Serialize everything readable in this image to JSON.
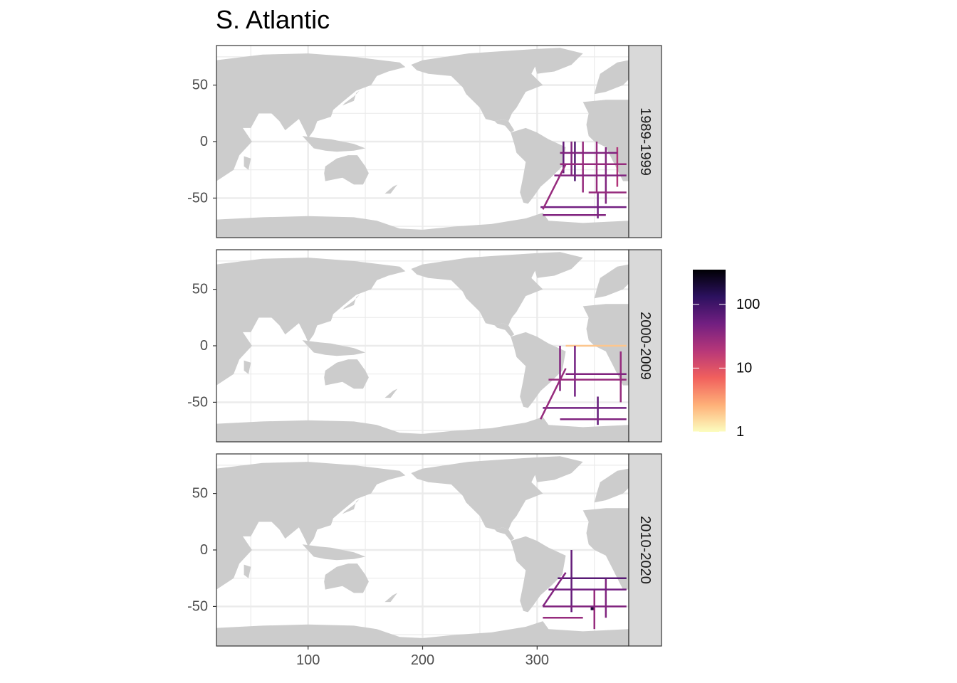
{
  "chart_data": {
    "type": "heatmap",
    "title": "S. Atlantic",
    "xlabel": "",
    "ylabel": "",
    "xlim": [
      20,
      380
    ],
    "ylim": [
      -85,
      85
    ],
    "x_ticks": [
      100,
      200,
      300
    ],
    "y_ticks": [
      -50,
      0,
      50
    ],
    "grid": true,
    "land_color": "#cccccc",
    "panel_background": "#ffffff",
    "region": {
      "lon": [
        300,
        380
      ],
      "lat": [
        -78,
        0
      ]
    },
    "facets": [
      {
        "label": "1989-1999",
        "tracks": [
          {
            "type": "meridional",
            "lon": 323,
            "lat": [
              -28,
              0
            ],
            "value": 60
          },
          {
            "type": "meridional",
            "lon": 330,
            "lat": [
              -30,
              0
            ],
            "value": 40
          },
          {
            "type": "meridional",
            "lon": 333,
            "lat": [
              -35,
              0
            ],
            "value": 80
          },
          {
            "type": "meridional",
            "lon": 340,
            "lat": [
              -45,
              0
            ],
            "value": 30
          },
          {
            "type": "meridional",
            "lon": 352,
            "lat": [
              -45,
              0
            ],
            "value": 30
          },
          {
            "type": "meridional",
            "lon": 360,
            "lat": [
              -55,
              -5
            ],
            "value": 40
          },
          {
            "type": "meridional",
            "lon": 370,
            "lat": [
              -40,
              -5
            ],
            "value": 20
          },
          {
            "type": "meridional",
            "lon": 353,
            "lat": [
              -68,
              -45
            ],
            "value": 50
          },
          {
            "type": "zonal",
            "lat": -10,
            "lon": [
              320,
              370
            ],
            "value": 40
          },
          {
            "type": "zonal",
            "lat": -20,
            "lon": [
              320,
              378
            ],
            "value": 30
          },
          {
            "type": "zonal",
            "lat": -30,
            "lon": [
              315,
              378
            ],
            "value": 40
          },
          {
            "type": "zonal",
            "lat": -45,
            "lon": [
              345,
              378
            ],
            "value": 30
          },
          {
            "type": "zonal",
            "lat": -58,
            "lon": [
              303,
              378
            ],
            "value": 50
          },
          {
            "type": "zonal",
            "lat": -65,
            "lon": [
              305,
              360
            ],
            "value": 40
          },
          {
            "type": "diagonal",
            "lon": [
              305,
              325
            ],
            "lat": [
              -60,
              -20
            ],
            "value": 30
          }
        ]
      },
      {
        "label": "2000-2009",
        "tracks": [
          {
            "type": "zonal",
            "lat": 0,
            "lon": [
              325,
              378
            ],
            "value": 2
          },
          {
            "type": "meridional",
            "lon": 320,
            "lat": [
              -40,
              0
            ],
            "value": 40
          },
          {
            "type": "meridional",
            "lon": 333,
            "lat": [
              -45,
              0
            ],
            "value": 50
          },
          {
            "type": "meridional",
            "lon": 373,
            "lat": [
              -50,
              -5
            ],
            "value": 30
          },
          {
            "type": "meridional",
            "lon": 353,
            "lat": [
              -70,
              -45
            ],
            "value": 60
          },
          {
            "type": "zonal",
            "lat": -25,
            "lon": [
              325,
              378
            ],
            "value": 40
          },
          {
            "type": "zonal",
            "lat": -30,
            "lon": [
              310,
              378
            ],
            "value": 30
          },
          {
            "type": "zonal",
            "lat": -55,
            "lon": [
              305,
              378
            ],
            "value": 50
          },
          {
            "type": "zonal",
            "lat": -65,
            "lon": [
              320,
              378
            ],
            "value": 40
          },
          {
            "type": "diagonal",
            "lon": [
              303,
              325
            ],
            "lat": [
              -65,
              -20
            ],
            "value": 30
          }
        ]
      },
      {
        "label": "2010-2020",
        "tracks": [
          {
            "type": "meridional",
            "lon": 330,
            "lat": [
              -55,
              0
            ],
            "value": 60
          },
          {
            "type": "meridional",
            "lon": 360,
            "lat": [
              -60,
              -25
            ],
            "value": 40
          },
          {
            "type": "meridional",
            "lon": 350,
            "lat": [
              -70,
              -35
            ],
            "value": 30
          },
          {
            "type": "zonal",
            "lat": -25,
            "lon": [
              318,
              378
            ],
            "value": 70
          },
          {
            "type": "zonal",
            "lat": -35,
            "lon": [
              310,
              378
            ],
            "value": 50
          },
          {
            "type": "zonal",
            "lat": -50,
            "lon": [
              305,
              378
            ],
            "value": 40
          },
          {
            "type": "zonal",
            "lat": -60,
            "lon": [
              305,
              340
            ],
            "value": 30
          },
          {
            "type": "diagonal",
            "lon": [
              305,
              325
            ],
            "lat": [
              -50,
              -20
            ],
            "value": 40
          },
          {
            "type": "point",
            "lon": 348,
            "lat": -52,
            "value": 200
          }
        ]
      }
    ],
    "legend": {
      "position": "right",
      "scale": "log10",
      "range": [
        1,
        350
      ],
      "ticks": [
        1,
        10,
        100
      ],
      "tick_labels": [
        "1",
        "10",
        "100"
      ],
      "palette": [
        "#fcfdbf",
        "#feb078",
        "#f1605d",
        "#b73779",
        "#721f81",
        "#2c115f",
        "#000004"
      ]
    }
  }
}
